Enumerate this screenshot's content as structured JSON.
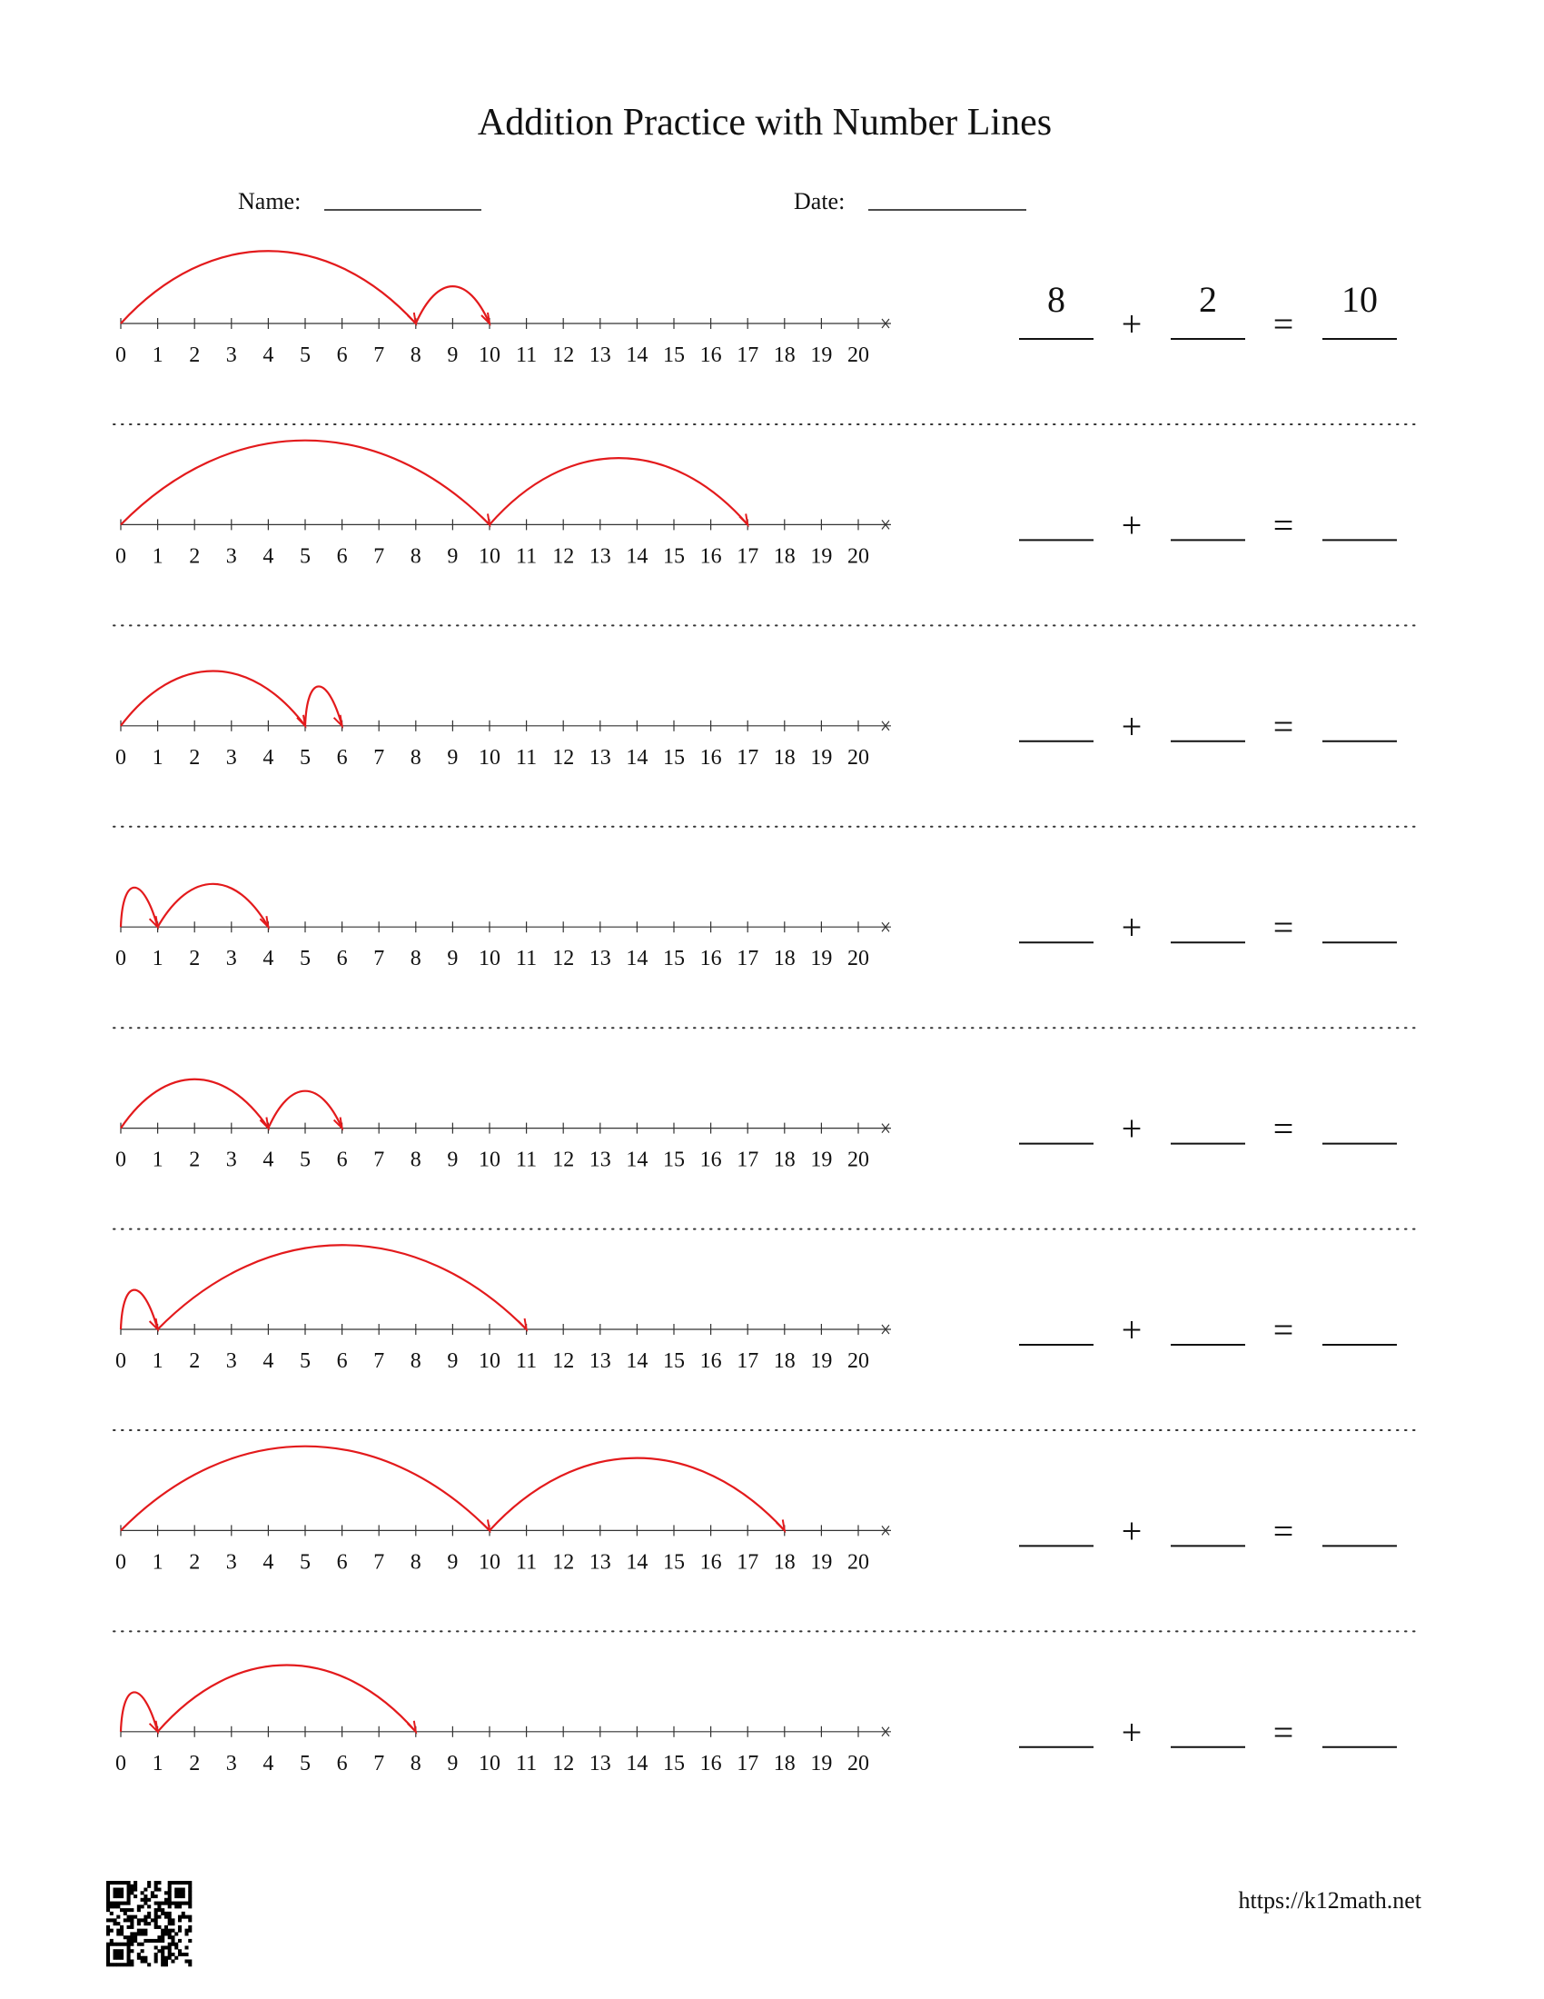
{
  "header": {
    "title": "Addition Practice with Number Lines",
    "name_label": "Name:",
    "date_label": "Date:"
  },
  "number_line": {
    "labels": [
      0,
      1,
      2,
      3,
      4,
      5,
      6,
      7,
      8,
      9,
      10,
      11,
      12,
      13,
      14,
      15,
      16,
      17,
      18,
      19,
      20
    ]
  },
  "equation": {
    "plus": "+",
    "equals": "="
  },
  "problems": [
    {
      "jumps": [
        8,
        2
      ],
      "answers": [
        8,
        2,
        10
      ]
    },
    {
      "jumps": [
        10,
        7
      ]
    },
    {
      "jumps": [
        5,
        1
      ]
    },
    {
      "jumps": [
        1,
        3
      ]
    },
    {
      "jumps": [
        4,
        2
      ]
    },
    {
      "jumps": [
        1,
        10
      ]
    },
    {
      "jumps": [
        10,
        8
      ]
    },
    {
      "jumps": [
        1,
        7
      ]
    }
  ],
  "footer": {
    "url": "https://k12math.net"
  }
}
